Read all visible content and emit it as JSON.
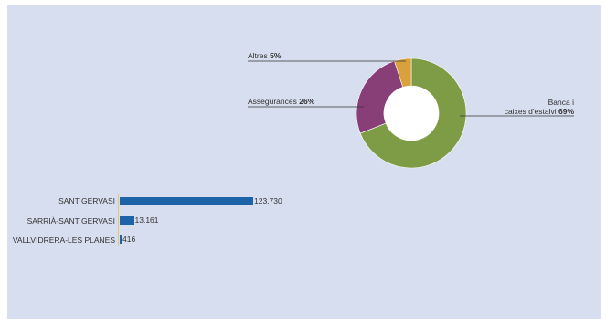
{
  "chart_data": [
    {
      "type": "pie",
      "variant": "donut",
      "slices": [
        {
          "label_line1": "Banca i",
          "label_line2": "caixes d'estalvi",
          "value": 69,
          "display": "69%",
          "color": "#7e9c45"
        },
        {
          "label_line1": "Assegurances",
          "label_line2": "",
          "value": 26,
          "display": "26%",
          "color": "#883f78"
        },
        {
          "label_line1": "Altres",
          "label_line2": "",
          "value": 5,
          "display": "5%",
          "color": "#d8a13c"
        }
      ]
    },
    {
      "type": "bar",
      "orientation": "horizontal",
      "categories": [
        "SANT GERVASI",
        "SARRIÀ-SANT GERVASI",
        "VALLVIDRERA-LES PLANES"
      ],
      "values": [
        123730,
        13161,
        416
      ],
      "value_labels": [
        "123.730",
        "13.161",
        "416"
      ],
      "color": "#1e63a8"
    }
  ]
}
